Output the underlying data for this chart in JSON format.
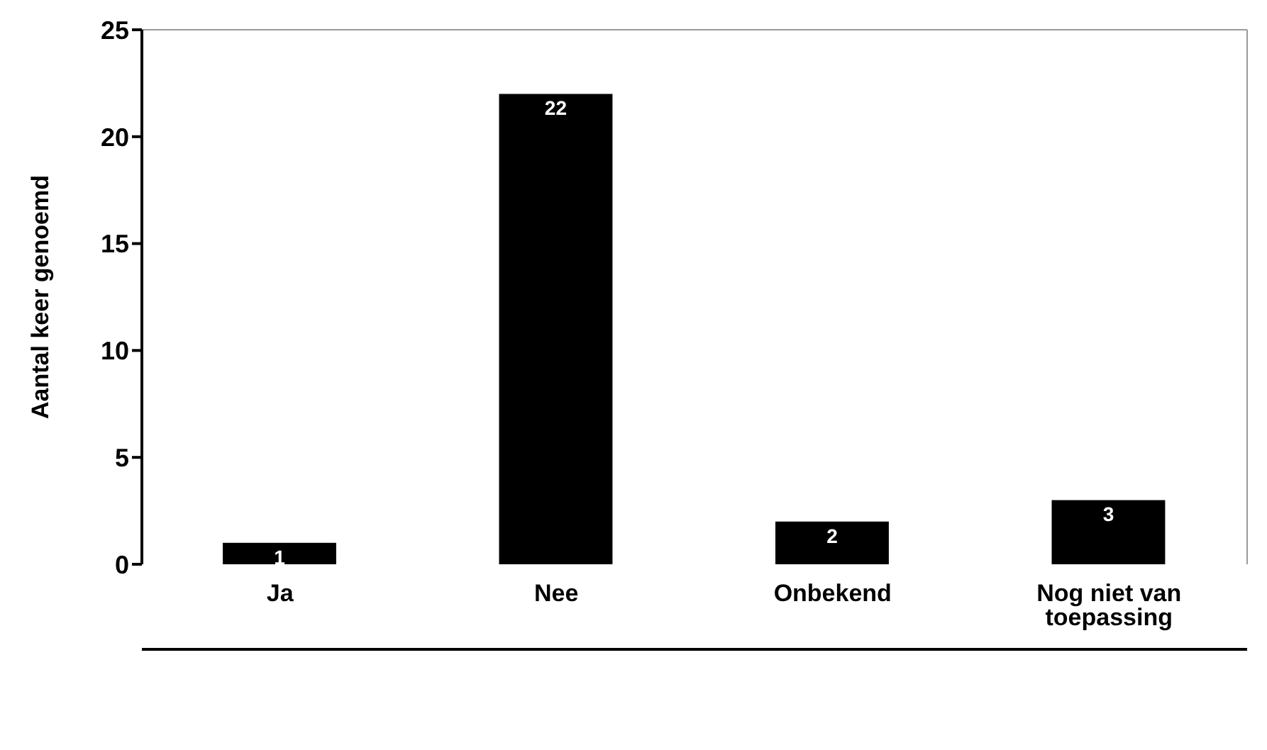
{
  "chart_data": {
    "type": "bar",
    "ylabel": "Aantal keer genoemd",
    "categories": [
      "Ja",
      "Nee",
      "Onbekend",
      "Nog niet van toepassing"
    ],
    "values": [
      1,
      22,
      2,
      3
    ],
    "color": "#000000",
    "ylim": [
      0,
      25
    ],
    "yticks": [
      0,
      5,
      10,
      15,
      20,
      25
    ],
    "data_labels": true
  }
}
